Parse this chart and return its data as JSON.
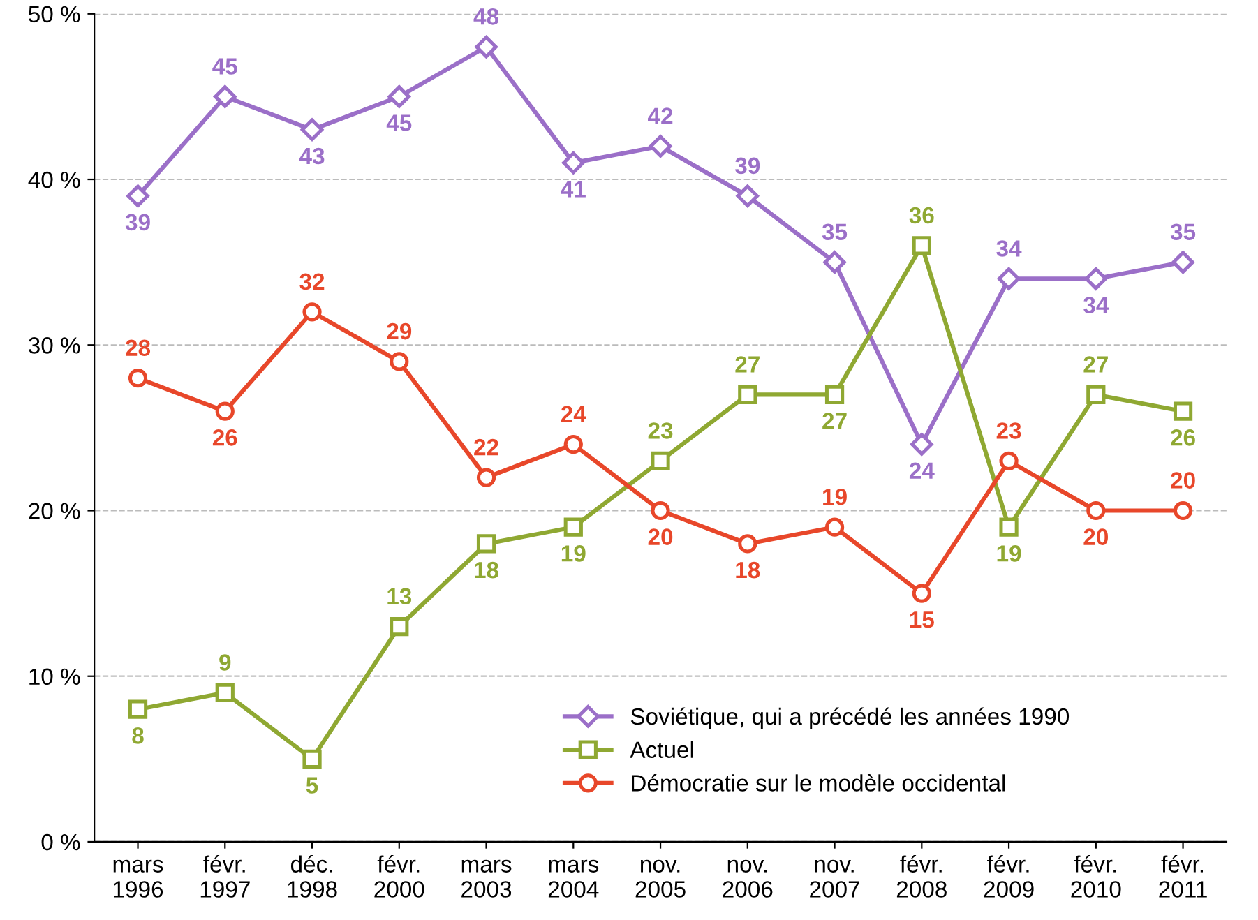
{
  "chart_data": {
    "type": "line",
    "categories": [
      "mars\n1996",
      "févr.\n1997",
      "déc.\n1998",
      "févr.\n2000",
      "mars\n2003",
      "mars\n2004",
      "nov.\n2005",
      "nov.\n2006",
      "nov.\n2007",
      "févr.\n2008",
      "févr.\n2009",
      "févr.\n2010",
      "févr.\n2011"
    ],
    "series": [
      {
        "name": "Soviétique, qui a précédé les années 1990",
        "color": "#9b6fc8",
        "marker": "diamond",
        "values": [
          39,
          45,
          43,
          45,
          48,
          41,
          42,
          39,
          35,
          24,
          34,
          34,
          35
        ]
      },
      {
        "name": "Actuel",
        "color": "#8fa832",
        "marker": "square",
        "values": [
          8,
          9,
          5,
          13,
          18,
          19,
          23,
          27,
          27,
          36,
          19,
          27,
          26
        ]
      },
      {
        "name": "Démocratie sur le modèle occidental",
        "color": "#e8472a",
        "marker": "circle",
        "values": [
          28,
          26,
          32,
          29,
          22,
          24,
          20,
          18,
          19,
          15,
          23,
          20,
          20
        ]
      }
    ],
    "ylim": [
      0,
      50
    ],
    "yticks": [
      {
        "value": 0,
        "label": "0 %"
      },
      {
        "value": 10,
        "label": "10 %"
      },
      {
        "value": 20,
        "label": "20 %"
      },
      {
        "value": 30,
        "label": "30 %"
      },
      {
        "value": 40,
        "label": "40 %"
      },
      {
        "value": 50,
        "label": "50 %"
      }
    ],
    "grid": "y",
    "legend": "bottom right",
    "data_labels": true,
    "line_style": "solid"
  }
}
